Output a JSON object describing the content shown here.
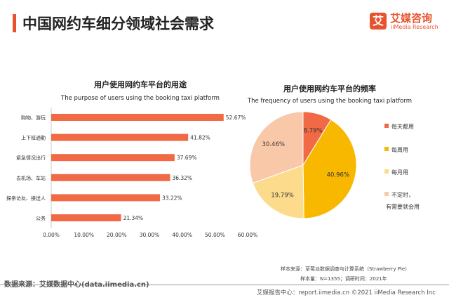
{
  "header": {
    "title": "中国网约车细分领域社会需求",
    "logo_glyph": "艾",
    "logo_cn": "艾媒咨询",
    "logo_en": "iiMedia Research"
  },
  "chart_data": [
    {
      "type": "bar",
      "orientation": "horizontal",
      "title": "用户使用网约车平台的用途",
      "subtitle": "The purpose of users using the booking taxi platform",
      "categories": [
        "购物、游玩",
        "上下班通勤",
        "紧急情况出行",
        "去机场、车站",
        "探亲访友、接送人",
        "公务"
      ],
      "values": [
        52.67,
        41.82,
        37.69,
        36.32,
        33.22,
        21.34
      ],
      "labels": [
        "52.67%",
        "41.82%",
        "37.69%",
        "36.32%",
        "33.22%",
        "21.34%"
      ],
      "xlim": [
        0,
        60
      ],
      "ticks": [
        "0.00%",
        "10.00%",
        "20.00%",
        "30.00%",
        "40.00%",
        "50.00%",
        "60.00%"
      ],
      "color": "#f26a45",
      "grid": false
    },
    {
      "type": "pie",
      "title": "用户使用网约车平台的频率",
      "subtitle": "The frequency of users using the booking taxi platform",
      "slices": [
        {
          "name": "每天都用",
          "value": 8.79,
          "label": "8.79%",
          "color": "#f26a45"
        },
        {
          "name": "每周用",
          "value": 40.96,
          "label": "40.96%",
          "color": "#f8b800"
        },
        {
          "name": "每月用",
          "value": 19.79,
          "label": "19.79%",
          "color": "#fcdb8c"
        },
        {
          "name": "不定时，有需要就会用",
          "name_lines": [
            "不定时，",
            "有需要就会用"
          ],
          "value": 30.46,
          "label": "30.46%",
          "color": "#f8c8a8"
        }
      ],
      "legend": "right"
    }
  ],
  "notes": {
    "source": "样本来源：草莓派数据调查与计算系统（Strawberry Pie）",
    "sample": "样本量：N=1355；调研时间：2021年"
  },
  "footer": {
    "left": "数据来源：艾媒数据中心(data.iimedia.cn)",
    "right": "艾媒报告中心：report.iimedia.cn   ©2021  iiMedia Research  Inc"
  }
}
